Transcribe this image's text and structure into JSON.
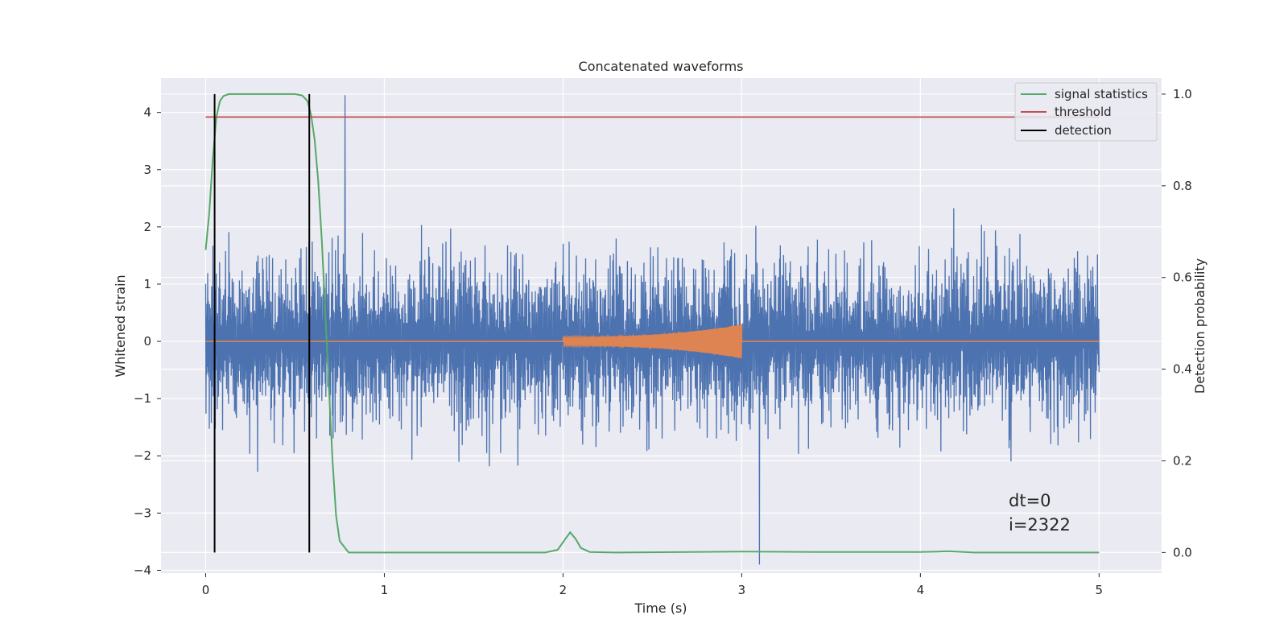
{
  "chart_data": {
    "type": "line",
    "title": "Concatenated waveforms",
    "xlabel": "Time (s)",
    "ylabel": "Whitened strain",
    "y2label": "Detection probability",
    "xlim": [
      -0.25,
      5.35
    ],
    "ylim": [
      -4.05,
      4.6
    ],
    "y2lim": [
      -0.045,
      1.035
    ],
    "x_ticks": [
      0,
      1,
      2,
      3,
      4,
      5
    ],
    "y_ticks": [
      -4,
      -3,
      -2,
      -1,
      0,
      1,
      2,
      3,
      4
    ],
    "y2_ticks": [
      0.0,
      0.2,
      0.4,
      0.6,
      0.8,
      1.0
    ],
    "x_tick_labels": [
      "0",
      "1",
      "2",
      "3",
      "4",
      "5"
    ],
    "y_tick_labels": [
      "−4",
      "−3",
      "−2",
      "−1",
      "0",
      "1",
      "2",
      "3",
      "4"
    ],
    "y2_tick_labels": [
      "0.0",
      "0.2",
      "0.4",
      "0.6",
      "0.8",
      "1.0"
    ],
    "grid": true,
    "legend_position": "top-right",
    "colors": {
      "strain": "#4c72b0",
      "waveform": "#dd8452",
      "signal_statistics": "#55a868",
      "threshold": "#c44e52",
      "detection": "#000000",
      "background": "#eaeaf2",
      "grid": "#ffffff"
    },
    "strain": {
      "x_range": [
        0,
        5
      ],
      "typical_amplitude": [
        -2.5,
        2.5
      ],
      "peak_max": 4.3,
      "peak_max_x": 0.78,
      "peak_min": -3.9,
      "peak_min_x": 3.1
    },
    "waveform": {
      "x_range": [
        0,
        5
      ],
      "chirp_start": 2.0,
      "chirp_end": 3.0,
      "start_amplitude": 0.08,
      "end_amplitude": 0.3
    },
    "series": [
      {
        "name": "signal statistics",
        "axis": "right",
        "x": [
          0.0,
          0.02,
          0.04,
          0.06,
          0.08,
          0.1,
          0.13,
          0.2,
          0.3,
          0.4,
          0.5,
          0.54,
          0.57,
          0.59,
          0.61,
          0.63,
          0.65,
          0.67,
          0.69,
          0.71,
          0.73,
          0.75,
          0.8,
          1.0,
          1.5,
          1.9,
          1.97,
          2.01,
          2.04,
          2.07,
          2.1,
          2.15,
          2.3,
          3.0,
          3.5,
          4.0,
          4.1,
          4.15,
          4.2,
          4.3,
          4.6,
          5.0
        ],
        "y": [
          0.66,
          0.74,
          0.86,
          0.95,
          0.985,
          0.996,
          1.0,
          1.0,
          1.0,
          1.0,
          1.0,
          0.997,
          0.985,
          0.955,
          0.9,
          0.81,
          0.68,
          0.52,
          0.36,
          0.2,
          0.08,
          0.025,
          0.0,
          0.0,
          0.0,
          0.0,
          0.006,
          0.028,
          0.044,
          0.03,
          0.01,
          0.001,
          0.0,
          0.002,
          0.001,
          0.001,
          0.002,
          0.003,
          0.002,
          0.0,
          0.0,
          0.0
        ]
      },
      {
        "name": "threshold",
        "axis": "right",
        "x": [
          0.0,
          5.0
        ],
        "y": [
          0.95,
          0.95
        ]
      },
      {
        "name": "detection",
        "axis": "right",
        "x": [
          0.05,
          0.58
        ],
        "y_range": [
          0.0,
          1.0
        ]
      }
    ],
    "annotations": [
      "dt=0",
      "i=2322"
    ]
  }
}
